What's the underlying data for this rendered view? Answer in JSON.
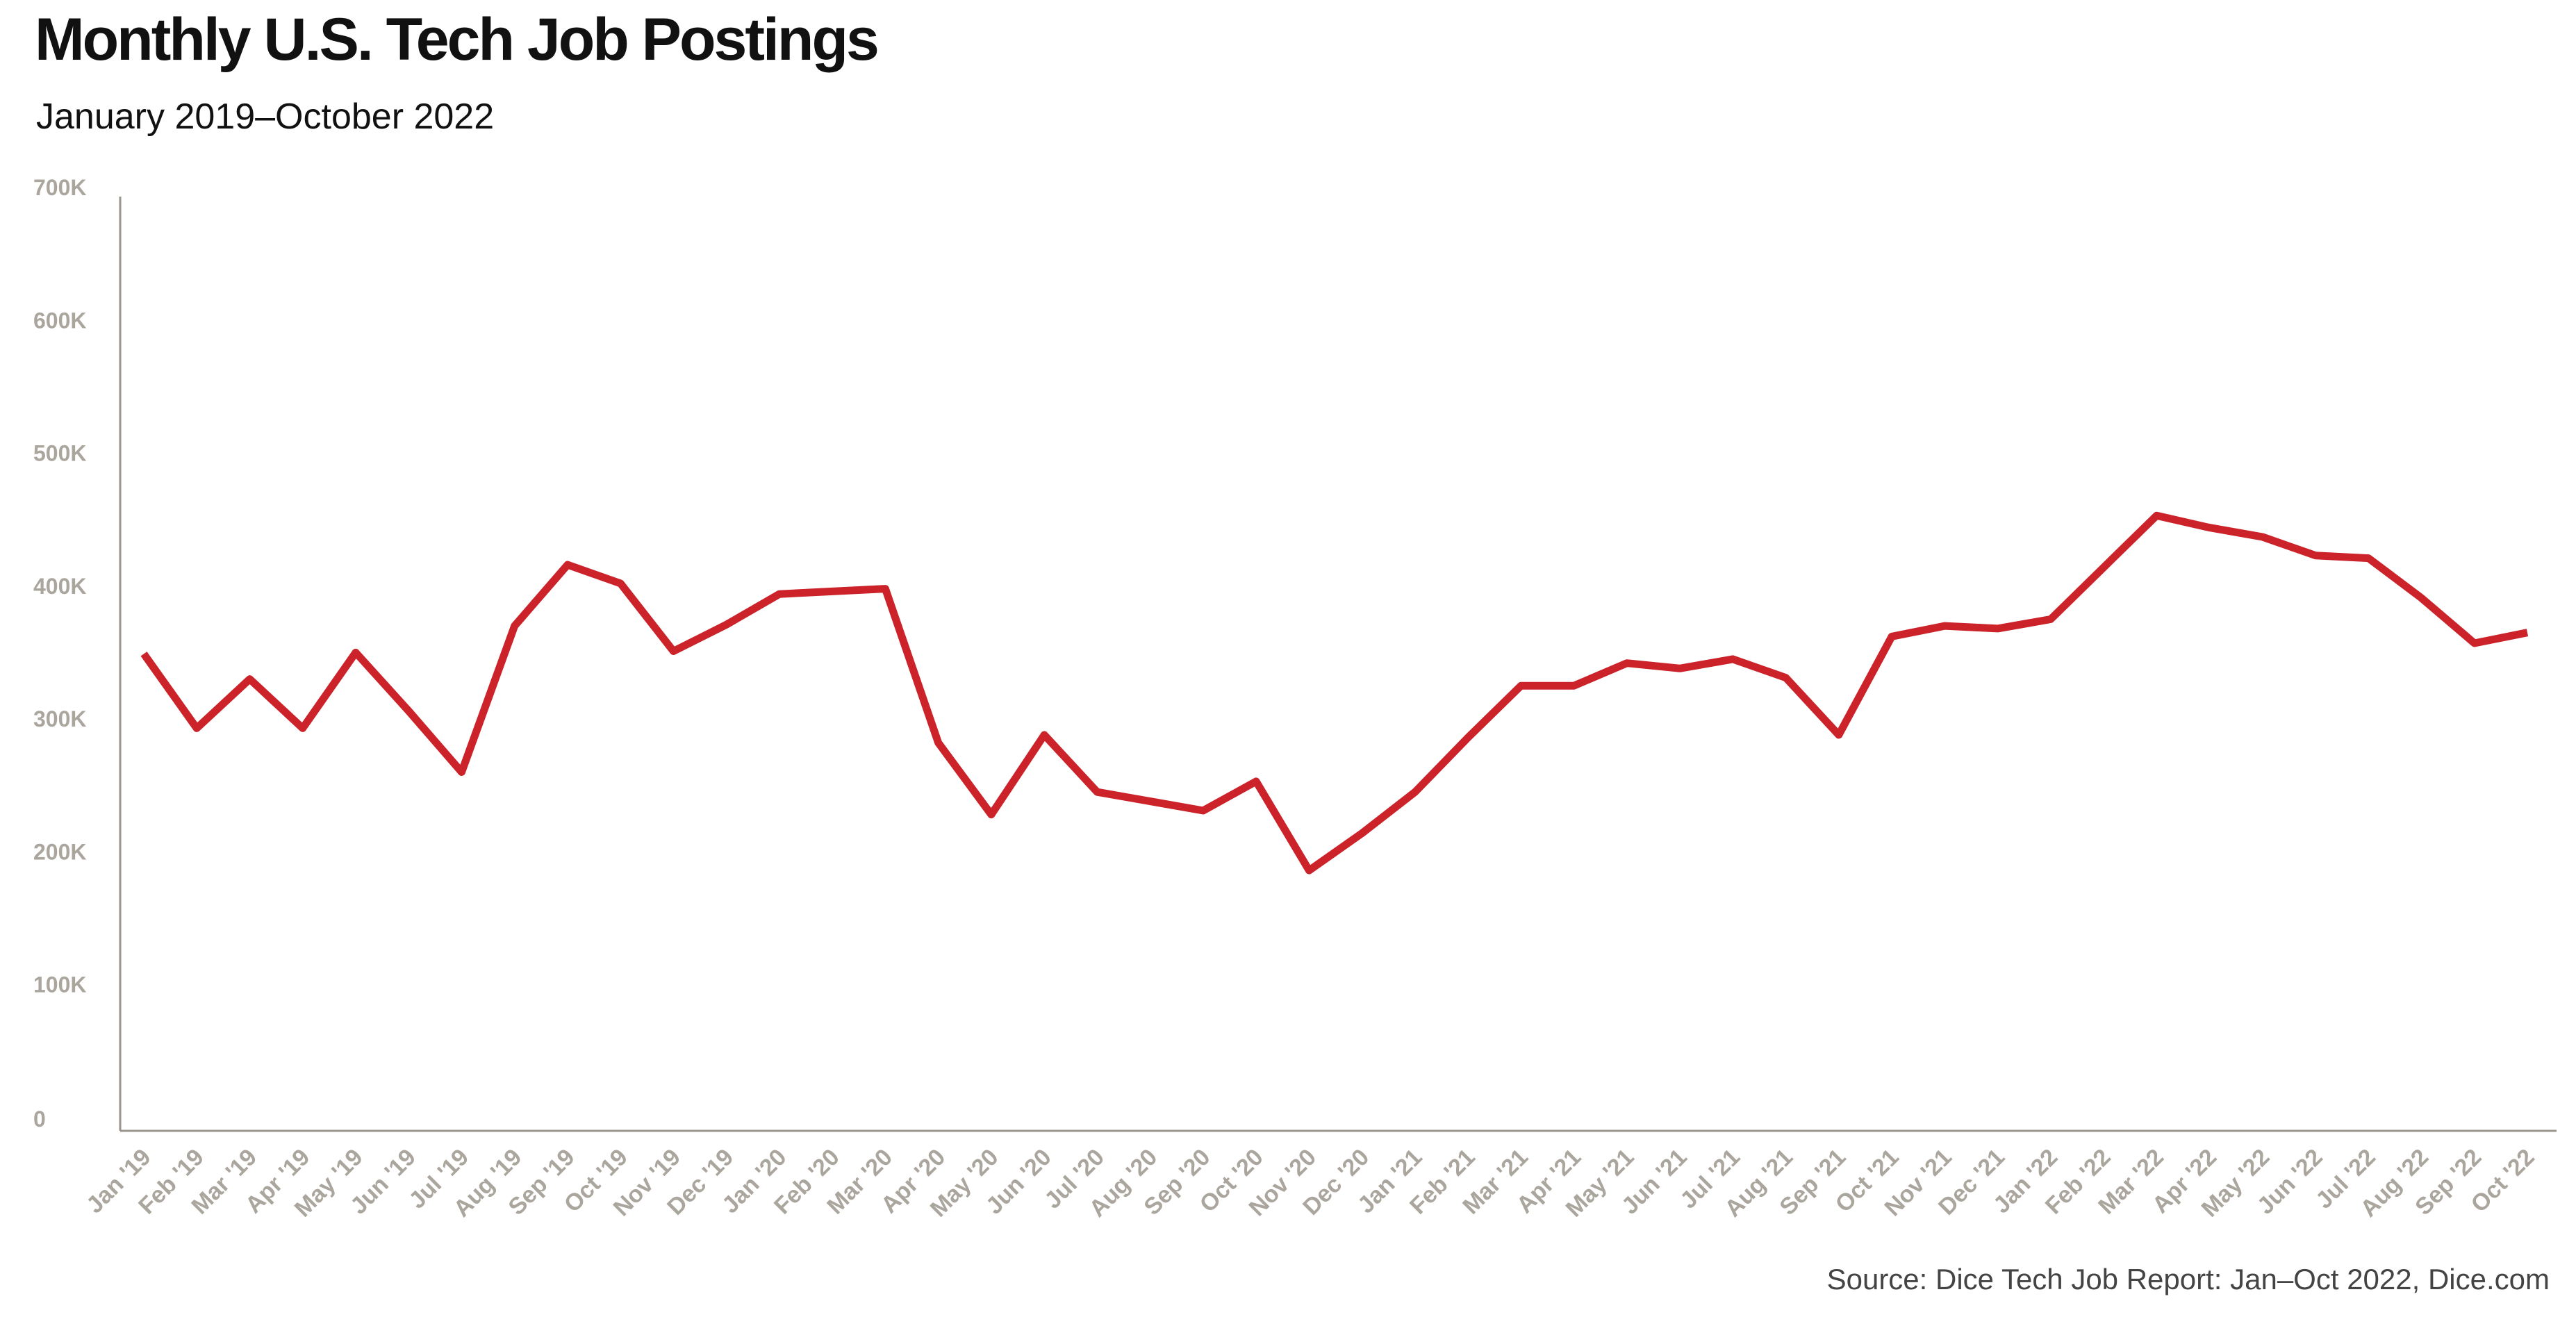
{
  "chart_data": {
    "type": "line",
    "title": "Monthly U.S. Tech Job Postings",
    "subtitle": "January 2019–October 2022",
    "source": "Source: Dice Tech Job Report: Jan–Oct 2022, Dice.com",
    "xlabel": "",
    "ylabel": "",
    "ylim": [
      0,
      700000
    ],
    "yticks": [
      0,
      100000,
      200000,
      300000,
      400000,
      500000,
      600000,
      700000
    ],
    "ytick_labels": [
      "0",
      "100K",
      "200K",
      "300K",
      "400K",
      "500K",
      "600K",
      "700K"
    ],
    "grid": false,
    "line_color": "#cc2229",
    "categories": [
      "Jan '19",
      "Feb '19",
      "Mar '19",
      "Apr '19",
      "May '19",
      "Jun '19",
      "Jul '19",
      "Aug '19",
      "Sep '19",
      "Oct '19",
      "Nov '19",
      "Dec '19",
      "Jan '20",
      "Feb '20",
      "Mar '20",
      "Apr '20",
      "May '20",
      "Jun '20",
      "Jul '20",
      "Aug '20",
      "Sep '20",
      "Oct '20",
      "Nov '20",
      "Dec '20",
      "Jan '21",
      "Feb '21",
      "Mar '21",
      "Apr '21",
      "May '21",
      "Jun '21",
      "Jul '21",
      "Aug '21",
      "Sep '21",
      "Oct '21",
      "Nov '21",
      "Dec '21",
      "Jan '22",
      "Feb '22",
      "Mar '22",
      "Apr '22",
      "May '22",
      "Jun '22",
      "Jul '22",
      "Aug '22",
      "Sep '22",
      "Oct '22"
    ],
    "series": [
      {
        "values": [
          359000,
          303000,
          340000,
          303000,
          360000,
          316000,
          270000,
          380000,
          426000,
          412000,
          361000,
          381000,
          404000,
          406000,
          408000,
          292000,
          238000,
          298000,
          255000,
          248000,
          241000,
          263000,
          196000,
          224000,
          255000,
          296000,
          335000,
          335000,
          352000,
          348000,
          355000,
          341000,
          298000,
          372000,
          380000,
          378000,
          385000,
          424000,
          463000,
          454000,
          447000,
          433000,
          431000,
          401000,
          367000,
          375000
        ]
      }
    ]
  }
}
